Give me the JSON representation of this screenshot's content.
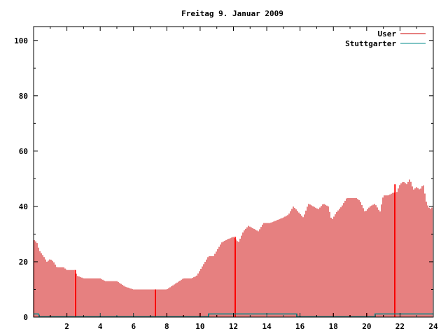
{
  "chart_data": {
    "type": "bar",
    "title": "Freitag 9. Januar 2009",
    "xlabel": "",
    "ylabel": "",
    "xlim": [
      0,
      24
    ],
    "ylim": [
      0,
      105
    ],
    "x_ticks": [
      "2",
      "4",
      "6",
      "8",
      "10",
      "12",
      "14",
      "16",
      "18",
      "20",
      "22",
      "24"
    ],
    "y_ticks": [
      "0",
      "20",
      "40",
      "60",
      "80",
      "100"
    ],
    "legend_position": "top-right",
    "grid": false,
    "series": [
      {
        "name": "User",
        "color": "#cc0000",
        "keypoints": [
          [
            0.0,
            28
          ],
          [
            0.2,
            27
          ],
          [
            0.35,
            24
          ],
          [
            0.6,
            22
          ],
          [
            0.8,
            20
          ],
          [
            1.0,
            21
          ],
          [
            1.2,
            20
          ],
          [
            1.4,
            18
          ],
          [
            1.8,
            18
          ],
          [
            2.0,
            17
          ],
          [
            2.5,
            17
          ],
          [
            2.6,
            15
          ],
          [
            3.0,
            14
          ],
          [
            3.5,
            14
          ],
          [
            4.0,
            14
          ],
          [
            4.3,
            13
          ],
          [
            5.0,
            13
          ],
          [
            5.5,
            11
          ],
          [
            6.0,
            10
          ],
          [
            6.5,
            10
          ],
          [
            7.0,
            10
          ],
          [
            7.5,
            10
          ],
          [
            8.0,
            10
          ],
          [
            8.5,
            12
          ],
          [
            9.0,
            14
          ],
          [
            9.5,
            14
          ],
          [
            9.8,
            15
          ],
          [
            10.1,
            18
          ],
          [
            10.5,
            22
          ],
          [
            10.8,
            22
          ],
          [
            11.0,
            24
          ],
          [
            11.3,
            27
          ],
          [
            11.6,
            28
          ],
          [
            12.0,
            29
          ],
          [
            12.3,
            27
          ],
          [
            12.6,
            31
          ],
          [
            12.9,
            33
          ],
          [
            13.2,
            32
          ],
          [
            13.5,
            31
          ],
          [
            13.8,
            34
          ],
          [
            14.2,
            34
          ],
          [
            14.6,
            35
          ],
          [
            15.0,
            36
          ],
          [
            15.3,
            37
          ],
          [
            15.6,
            40
          ],
          [
            15.9,
            38
          ],
          [
            16.2,
            36
          ],
          [
            16.5,
            41
          ],
          [
            16.8,
            40
          ],
          [
            17.1,
            39
          ],
          [
            17.4,
            41
          ],
          [
            17.7,
            40
          ],
          [
            17.9,
            35
          ],
          [
            18.2,
            38
          ],
          [
            18.5,
            40
          ],
          [
            18.8,
            43
          ],
          [
            19.1,
            43
          ],
          [
            19.4,
            43
          ],
          [
            19.6,
            42
          ],
          [
            19.9,
            38
          ],
          [
            20.2,
            40
          ],
          [
            20.5,
            41
          ],
          [
            20.8,
            38
          ],
          [
            21.0,
            44
          ],
          [
            21.3,
            44
          ],
          [
            21.6,
            45
          ],
          [
            21.8,
            45
          ],
          [
            22.0,
            48
          ],
          [
            22.2,
            49
          ],
          [
            22.4,
            48
          ],
          [
            22.6,
            50
          ],
          [
            22.8,
            46
          ],
          [
            23.0,
            47
          ],
          [
            23.2,
            46
          ],
          [
            23.4,
            48
          ],
          [
            23.6,
            41
          ],
          [
            23.8,
            39
          ],
          [
            24.0,
            40
          ]
        ],
        "spikes": [
          [
            2.5,
            17
          ],
          [
            7.3,
            10
          ],
          [
            12.1,
            29
          ],
          [
            21.7,
            48
          ]
        ]
      },
      {
        "name": "Stuttgarter",
        "color": "#008b8b",
        "keypoints": [
          [
            0.0,
            1
          ],
          [
            0.3,
            1
          ],
          [
            0.35,
            0
          ],
          [
            10.5,
            0
          ],
          [
            10.5,
            1
          ],
          [
            15.8,
            1
          ],
          [
            15.8,
            0
          ],
          [
            20.5,
            0
          ],
          [
            20.5,
            1
          ],
          [
            24.0,
            1
          ]
        ]
      }
    ]
  }
}
